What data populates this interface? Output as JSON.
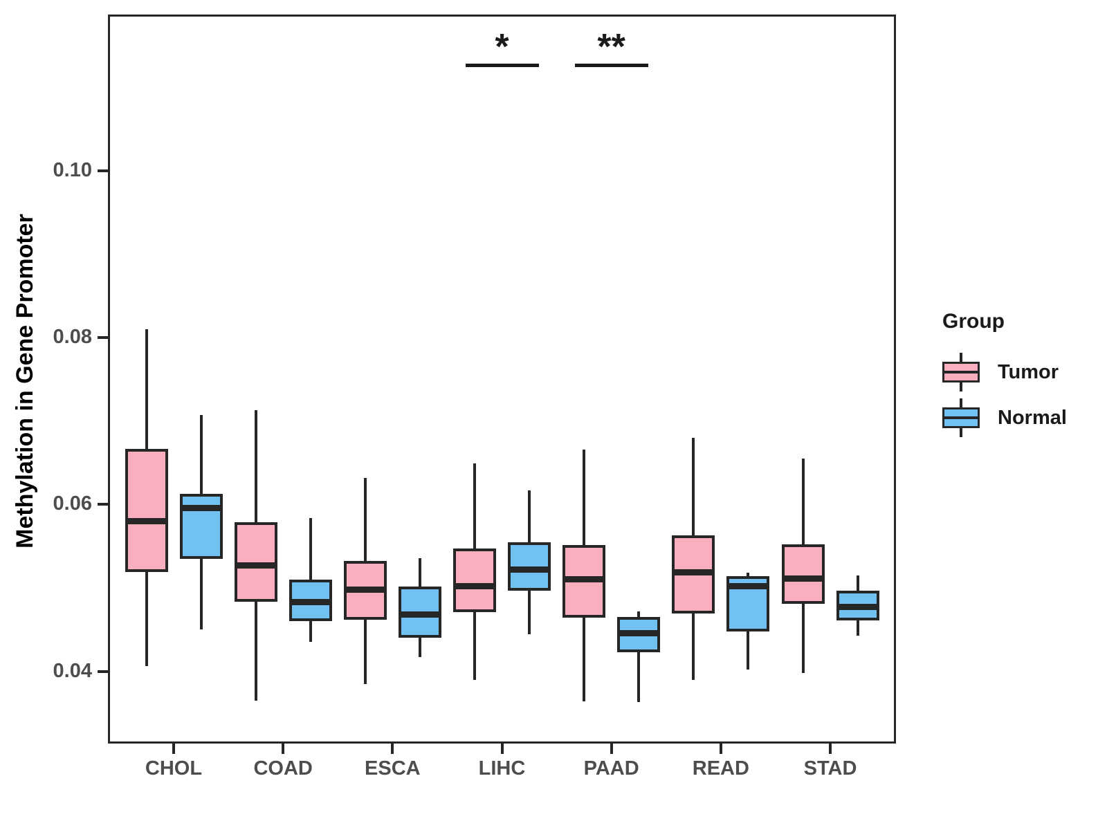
{
  "chart_data": {
    "type": "boxplot",
    "title": "",
    "ylabel": "Methylation in Gene Promoter",
    "xlabel": "",
    "categories": [
      "CHOL",
      "COAD",
      "ESCA",
      "LIHC",
      "PAAD",
      "READ",
      "STAD"
    ],
    "y_tick_labels": [
      "0.04",
      "0.06",
      "0.08",
      "0.10"
    ],
    "y_tick_values": [
      0.04,
      0.06,
      0.08,
      0.1
    ],
    "ylim": [
      0.0315,
      0.1186
    ],
    "grid": false,
    "legend_position": "right",
    "legend_title": "Group",
    "groups": [
      {
        "name": "Tumor",
        "color": "#FAAFBE",
        "boxes": [
          {
            "category": "CHOL",
            "whisker_low": 0.0406,
            "q1": 0.0519,
            "median": 0.058,
            "q3": 0.0667,
            "whisker_high": 0.081
          },
          {
            "category": "COAD",
            "whisker_low": 0.0365,
            "q1": 0.0483,
            "median": 0.0527,
            "q3": 0.0579,
            "whisker_high": 0.0713
          },
          {
            "category": "ESCA",
            "whisker_low": 0.0385,
            "q1": 0.0462,
            "median": 0.0498,
            "q3": 0.0532,
            "whisker_high": 0.0632
          },
          {
            "category": "LIHC",
            "whisker_low": 0.039,
            "q1": 0.0471,
            "median": 0.0502,
            "q3": 0.0547,
            "whisker_high": 0.0649
          },
          {
            "category": "PAAD",
            "whisker_low": 0.0364,
            "q1": 0.0464,
            "median": 0.051,
            "q3": 0.0551,
            "whisker_high": 0.0666
          },
          {
            "category": "READ",
            "whisker_low": 0.039,
            "q1": 0.0469,
            "median": 0.0519,
            "q3": 0.0563,
            "whisker_high": 0.068
          },
          {
            "category": "STAD",
            "whisker_low": 0.0398,
            "q1": 0.0481,
            "median": 0.0511,
            "q3": 0.0552,
            "whisker_high": 0.0655
          }
        ]
      },
      {
        "name": "Normal",
        "color": "#72C1F3",
        "boxes": [
          {
            "category": "CHOL",
            "whisker_low": 0.045,
            "q1": 0.0535,
            "median": 0.0596,
            "q3": 0.0613,
            "whisker_high": 0.0707
          },
          {
            "category": "COAD",
            "whisker_low": 0.0435,
            "q1": 0.046,
            "median": 0.0483,
            "q3": 0.051,
            "whisker_high": 0.0584
          },
          {
            "category": "ESCA",
            "whisker_low": 0.0417,
            "q1": 0.044,
            "median": 0.0468,
            "q3": 0.0502,
            "whisker_high": 0.0536
          },
          {
            "category": "LIHC",
            "whisker_low": 0.0444,
            "q1": 0.0497,
            "median": 0.0522,
            "q3": 0.0555,
            "whisker_high": 0.0617
          },
          {
            "category": "PAAD",
            "whisker_low": 0.0363,
            "q1": 0.0423,
            "median": 0.0446,
            "q3": 0.0465,
            "whisker_high": 0.0472
          },
          {
            "category": "READ",
            "whisker_low": 0.0402,
            "q1": 0.0448,
            "median": 0.0502,
            "q3": 0.0514,
            "whisker_high": 0.0518
          },
          {
            "category": "STAD",
            "whisker_low": 0.0443,
            "q1": 0.0461,
            "median": 0.0477,
            "q3": 0.0497,
            "whisker_high": 0.0515
          }
        ]
      }
    ],
    "annotations": [
      {
        "text": "*",
        "category": "LIHC",
        "bracket_y": 0.1129
      },
      {
        "text": "**",
        "category": "PAAD",
        "bracket_y": 0.1129
      }
    ],
    "style": {
      "box_border_color": "#262626",
      "median_color": "#262626",
      "whisker_color": "#262626",
      "axis_tick_color": "#262626",
      "axis_text_color": "#4D4D4D",
      "title_text_color": "#000000",
      "legend_text_color": "#1A1A1A",
      "annotation_color": "#1A1A1A",
      "background": "#FFFFFF"
    }
  },
  "legend": {
    "title": "Group",
    "entries": [
      {
        "label": "Tumor",
        "color": "#FAAFBE"
      },
      {
        "label": "Normal",
        "color": "#72C1F3"
      }
    ]
  }
}
